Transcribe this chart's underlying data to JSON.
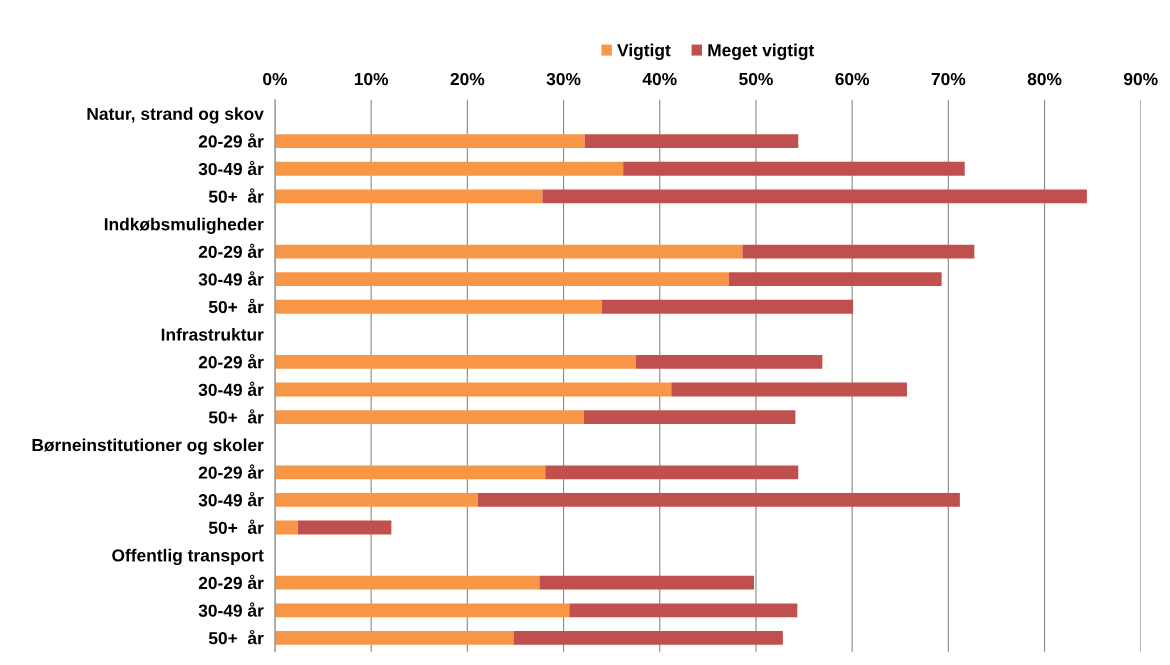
{
  "chart_data": {
    "type": "bar",
    "orientation": "horizontal",
    "stacked": true,
    "categories": [
      "Natur, strand og skov",
      "20-29 år",
      "30-49 år",
      "50+  år",
      "Indkøbsmuligheder",
      "20-29 år",
      "30-49 år",
      "50+  år",
      "Infrastruktur",
      "20-29 år",
      "30-49 år",
      "50+  år",
      "Børneinstitutioner og skoler",
      "20-29 år",
      "30-49 år",
      "50+  år",
      "Offentlig transport",
      "20-29 år",
      "30-49 år",
      "50+  år"
    ],
    "series": [
      {
        "name": "Vigtigt",
        "color": "#f79646",
        "values": [
          null,
          32.2,
          36.2,
          27.8,
          null,
          48.6,
          47.2,
          34.0,
          null,
          37.5,
          41.2,
          32.1,
          null,
          28.1,
          21.1,
          2.4,
          null,
          27.5,
          30.6,
          24.8
        ]
      },
      {
        "name": "Meget vigtigt",
        "color": "#c0504d",
        "values": [
          null,
          22.2,
          35.5,
          56.6,
          null,
          24.1,
          22.1,
          26.1,
          null,
          19.4,
          24.5,
          22.0,
          null,
          26.3,
          50.1,
          9.7,
          null,
          22.3,
          23.7,
          28.0
        ]
      }
    ],
    "xlim": [
      0,
      90
    ],
    "xticks": [
      {
        "value": 0,
        "label": "0%"
      },
      {
        "value": 10,
        "label": "10%"
      },
      {
        "value": 20,
        "label": "20%"
      },
      {
        "value": 30,
        "label": "30%"
      },
      {
        "value": 40,
        "label": "40%"
      },
      {
        "value": 50,
        "label": "50%"
      },
      {
        "value": 60,
        "label": "60%"
      },
      {
        "value": 70,
        "label": "70%"
      },
      {
        "value": 80,
        "label": "80%"
      },
      {
        "value": 90,
        "label": "90%"
      }
    ],
    "grid": "x",
    "legend": "top"
  }
}
